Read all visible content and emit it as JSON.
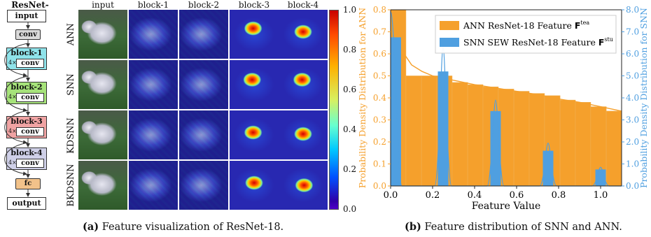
{
  "panel_a": {
    "network_title": "ResNet-18",
    "blocks": [
      {
        "label": "input",
        "fill": "#ffffff"
      },
      {
        "label": "conv",
        "fill": "#d9d9d9"
      },
      {
        "label": "block-1",
        "inner": "conv",
        "repeat": "4×",
        "fill": "#8fe3ea"
      },
      {
        "label": "block-2",
        "inner": "conv",
        "repeat": "4×",
        "fill": "#a6e37a"
      },
      {
        "label": "block-3",
        "inner": "conv",
        "repeat": "4×",
        "fill": "#f0a3a3"
      },
      {
        "label": "block-4",
        "inner": "conv",
        "repeat": "4×",
        "fill": "#cfd0e8"
      },
      {
        "label": "fc",
        "fill": "#f2c28a"
      },
      {
        "label": "output",
        "fill": "#ffffff"
      }
    ],
    "columns": [
      "input",
      "block-1",
      "block-2",
      "block-3",
      "block-4"
    ],
    "rows": [
      "ANN",
      "SNN",
      "KDSNN",
      "BKDSNN"
    ],
    "colorbar_ticks": [
      "1.0",
      "0.8",
      "0.6",
      "0.4",
      "0.2",
      "0.0"
    ],
    "caption_tag": "(a)",
    "caption_text": "Feature visualization of ResNet-18."
  },
  "panel_b": {
    "caption_tag": "(b)",
    "caption_text": "Feature distribution of SNN and ANN.",
    "chart_data": {
      "type": "bar",
      "xlabel": "Feature Value",
      "ylabel_left": "Probability Density Distribution for ANN",
      "ylabel_right": "Probability Density Distribution for SNN",
      "xlim": [
        0,
        1.1
      ],
      "ylim_left": [
        0,
        0.8
      ],
      "ylim_right": [
        0,
        8.0
      ],
      "x_ticks": [
        "0.0",
        "0.2",
        "0.4",
        "0.6",
        "0.8",
        "1.0"
      ],
      "y_ticks_left": [
        "0.0",
        "0.1",
        "0.2",
        "0.3",
        "0.4",
        "0.5",
        "0.6",
        "0.7",
        "0.8"
      ],
      "y_ticks_right": [
        "0.0",
        "1.0",
        "2.0",
        "3.0",
        "4.0",
        "5.0",
        "6.0",
        "7.0",
        "8.0"
      ],
      "legend": [
        {
          "name": "ANN ResNet-18 Feature ",
          "symbol": "F",
          "sup": "tea",
          "color": "#f5a02c"
        },
        {
          "name": "SNN SEW ResNet-18 Feature ",
          "symbol": "F",
          "sup": "stu",
          "color": "#4f9fe0"
        }
      ],
      "ann_series": {
        "bin_edges": [
          0,
          0.073,
          0.147,
          0.22,
          0.293,
          0.367,
          0.44,
          0.513,
          0.587,
          0.66,
          0.733,
          0.807,
          0.88,
          0.953,
          1.027,
          1.1
        ],
        "values": [
          0.8,
          0.5,
          0.5,
          0.5,
          0.47,
          0.46,
          0.45,
          0.44,
          0.43,
          0.42,
          0.41,
          0.39,
          0.38,
          0.36,
          0.34
        ],
        "kde_x": [
          0.0,
          0.02,
          0.05,
          0.1,
          0.15,
          0.2,
          0.3,
          0.4,
          0.5,
          0.6,
          0.7,
          0.8,
          0.9,
          1.0,
          1.1
        ],
        "kde_y": [
          0.8,
          0.71,
          0.62,
          0.55,
          0.52,
          0.5,
          0.48,
          0.46,
          0.445,
          0.43,
          0.415,
          0.395,
          0.38,
          0.36,
          0.34
        ]
      },
      "snn_series": {
        "bars": [
          {
            "x": 0.0,
            "value": 6.75
          },
          {
            "x": 0.25,
            "value": 5.2
          },
          {
            "x": 0.5,
            "value": 3.4
          },
          {
            "x": 0.75,
            "value": 1.6
          },
          {
            "x": 1.0,
            "value": 0.75
          }
        ],
        "kde_peaks": [
          {
            "x": 0.0,
            "value": 7.9
          },
          {
            "x": 0.25,
            "value": 6.3
          },
          {
            "x": 0.5,
            "value": 3.9
          },
          {
            "x": 0.75,
            "value": 1.95
          },
          {
            "x": 1.0,
            "value": 0.85
          }
        ]
      }
    }
  }
}
